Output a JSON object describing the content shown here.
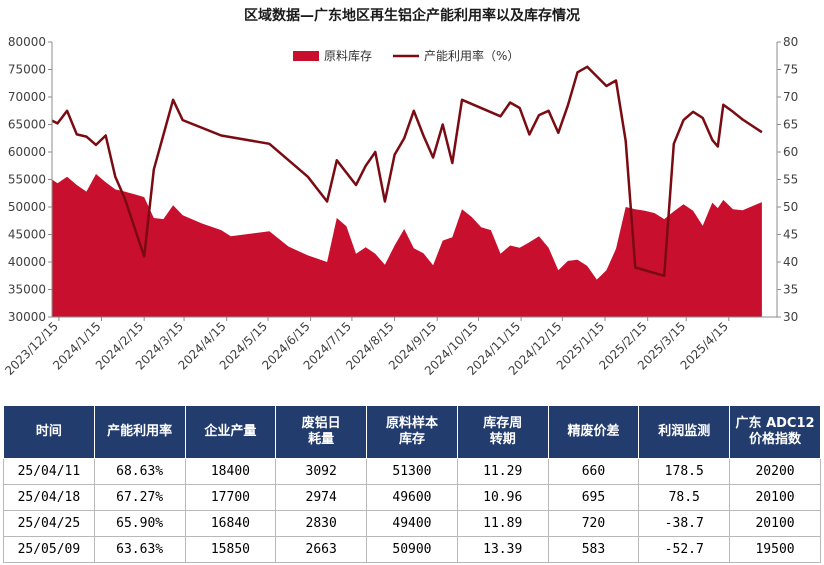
{
  "chart_data": {
    "type": "area+line",
    "title": "区域数据—广东地区再生铝企产能利用率以及库存情况",
    "colors": {
      "area": "#c8102e",
      "line": "#7a0b12"
    },
    "legend": {
      "position": "top-center",
      "items": [
        "原料库存",
        "产能利用率（%）"
      ]
    },
    "grid": false,
    "y_left": {
      "min": 30000,
      "max": 80000,
      "step": 5000,
      "ticks": [
        "30000",
        "35000",
        "40000",
        "45000",
        "50000",
        "55000",
        "60000",
        "65000",
        "70000",
        "75000",
        "80000"
      ]
    },
    "y_right": {
      "min": 30,
      "max": 80,
      "step": 5,
      "ticks": [
        "30",
        "35",
        "40",
        "45",
        "50",
        "55",
        "60",
        "65",
        "70",
        "75",
        "80"
      ]
    },
    "x_ticks": [
      "2023/12/15",
      "2024/1/15",
      "2024/2/15",
      "2024/3/15",
      "2024/4/15",
      "2024/5/15",
      "2024/6/15",
      "2024/7/15",
      "2024/8/15",
      "2024/9/15",
      "2024/10/15",
      "2024/11/15",
      "2024/12/15",
      "2025/1/15",
      "2025/2/15",
      "2025/3/15",
      "2025/4/15"
    ],
    "x_range": [
      "2023-12-10",
      "2025-05-20"
    ],
    "series": [
      {
        "name": "原料库存",
        "kind": "area",
        "axis": "left",
        "points": [
          [
            "2023-12-10",
            55000
          ],
          [
            "2023-12-14",
            54300
          ],
          [
            "2023-12-21",
            55500
          ],
          [
            "2023-12-28",
            54000
          ],
          [
            "2024-01-04",
            52800
          ],
          [
            "2024-01-11",
            56000
          ],
          [
            "2024-01-18",
            54500
          ],
          [
            "2024-01-25",
            53200
          ],
          [
            "2024-02-01",
            52800
          ],
          [
            "2024-02-08",
            52300
          ],
          [
            "2024-02-15",
            51800
          ],
          [
            "2024-02-22",
            48000
          ],
          [
            "2024-02-29",
            47800
          ],
          [
            "2024-03-07",
            50300
          ],
          [
            "2024-03-14",
            48500
          ],
          [
            "2024-03-28",
            47000
          ],
          [
            "2024-04-11",
            45800
          ],
          [
            "2024-04-18",
            44700
          ],
          [
            "2024-05-16",
            45600
          ],
          [
            "2024-05-30",
            42800
          ],
          [
            "2024-06-13",
            41200
          ],
          [
            "2024-06-27",
            40000
          ],
          [
            "2024-07-04",
            48000
          ],
          [
            "2024-07-11",
            46500
          ],
          [
            "2024-07-18",
            41500
          ],
          [
            "2024-07-25",
            42700
          ],
          [
            "2024-08-01",
            41500
          ],
          [
            "2024-08-08",
            39500
          ],
          [
            "2024-08-15",
            43000
          ],
          [
            "2024-08-22",
            46000
          ],
          [
            "2024-08-29",
            42500
          ],
          [
            "2024-09-05",
            41600
          ],
          [
            "2024-09-12",
            39400
          ],
          [
            "2024-09-19",
            43900
          ],
          [
            "2024-09-26",
            44500
          ],
          [
            "2024-10-03",
            49600
          ],
          [
            "2024-10-10",
            48200
          ],
          [
            "2024-10-17",
            46300
          ],
          [
            "2024-10-24",
            45800
          ],
          [
            "2024-10-31",
            41500
          ],
          [
            "2024-11-07",
            43000
          ],
          [
            "2024-11-14",
            42600
          ],
          [
            "2024-11-21",
            43600
          ],
          [
            "2024-11-28",
            44700
          ],
          [
            "2024-12-05",
            42600
          ],
          [
            "2024-12-12",
            38500
          ],
          [
            "2024-12-19",
            40200
          ],
          [
            "2024-12-26",
            40400
          ],
          [
            "2025-01-02",
            39300
          ],
          [
            "2025-01-09",
            36800
          ],
          [
            "2025-01-16",
            38500
          ],
          [
            "2025-01-23",
            42400
          ],
          [
            "2025-01-30",
            50000
          ],
          [
            "2025-02-06",
            49600
          ],
          [
            "2025-02-13",
            49300
          ],
          [
            "2025-02-20",
            48900
          ],
          [
            "2025-02-27",
            47800
          ],
          [
            "2025-03-06",
            49200
          ],
          [
            "2025-03-13",
            50500
          ],
          [
            "2025-03-20",
            49300
          ],
          [
            "2025-03-27",
            46600
          ],
          [
            "2025-04-03",
            50800
          ],
          [
            "2025-04-07",
            49800
          ],
          [
            "2025-04-11",
            51300
          ],
          [
            "2025-04-18",
            49600
          ],
          [
            "2025-04-25",
            49400
          ],
          [
            "2025-05-09",
            50900
          ]
        ]
      },
      {
        "name": "产能利用率（%）",
        "kind": "line",
        "axis": "right",
        "points": [
          [
            "2023-12-10",
            65.7
          ],
          [
            "2023-12-14",
            65.2
          ],
          [
            "2023-12-21",
            67.5
          ],
          [
            "2023-12-28",
            63.2
          ],
          [
            "2024-01-04",
            62.8
          ],
          [
            "2024-01-11",
            61.3
          ],
          [
            "2024-01-18",
            63.0
          ],
          [
            "2024-01-25",
            55.5
          ],
          [
            "2024-02-01",
            51.5
          ],
          [
            "2024-02-15",
            41.0
          ],
          [
            "2024-02-22",
            56.8
          ],
          [
            "2024-03-07",
            69.5
          ],
          [
            "2024-03-14",
            65.8
          ],
          [
            "2024-04-11",
            63.0
          ],
          [
            "2024-05-16",
            61.5
          ],
          [
            "2024-06-13",
            55.5
          ],
          [
            "2024-06-27",
            51.0
          ],
          [
            "2024-07-04",
            58.5
          ],
          [
            "2024-07-18",
            54.0
          ],
          [
            "2024-07-25",
            57.5
          ],
          [
            "2024-08-01",
            60.0
          ],
          [
            "2024-08-08",
            51.0
          ],
          [
            "2024-08-15",
            59.5
          ],
          [
            "2024-08-22",
            62.5
          ],
          [
            "2024-08-29",
            67.5
          ],
          [
            "2024-09-05",
            63.0
          ],
          [
            "2024-09-12",
            59.0
          ],
          [
            "2024-09-19",
            65.0
          ],
          [
            "2024-09-26",
            58.0
          ],
          [
            "2024-10-03",
            69.5
          ],
          [
            "2024-10-31",
            66.5
          ],
          [
            "2024-11-07",
            69.0
          ],
          [
            "2024-11-14",
            68.0
          ],
          [
            "2024-11-21",
            63.2
          ],
          [
            "2024-11-28",
            66.7
          ],
          [
            "2024-12-05",
            67.5
          ],
          [
            "2024-12-12",
            63.5
          ],
          [
            "2024-12-19",
            68.5
          ],
          [
            "2024-12-26",
            74.5
          ],
          [
            "2025-01-02",
            75.5
          ],
          [
            "2025-01-16",
            72.0
          ],
          [
            "2025-01-23",
            73.0
          ],
          [
            "2025-01-30",
            62.0
          ],
          [
            "2025-02-06",
            39.0
          ],
          [
            "2025-02-27",
            37.5
          ],
          [
            "2025-03-06",
            61.5
          ],
          [
            "2025-03-13",
            65.8
          ],
          [
            "2025-03-20",
            67.3
          ],
          [
            "2025-03-27",
            66.2
          ],
          [
            "2025-04-03",
            62.2
          ],
          [
            "2025-04-07",
            61.0
          ],
          [
            "2025-04-11",
            68.6
          ],
          [
            "2025-04-18",
            67.3
          ],
          [
            "2025-04-25",
            65.9
          ],
          [
            "2025-05-09",
            63.6
          ]
        ]
      }
    ]
  },
  "table": {
    "headers": [
      [
        "时间"
      ],
      [
        "产能利用率"
      ],
      [
        "企业产量"
      ],
      [
        "废铝日",
        "耗量"
      ],
      [
        "原料样本",
        "库存"
      ],
      [
        "库存周",
        "转期"
      ],
      [
        "精废价差"
      ],
      [
        "利润监测"
      ],
      [
        "广东 ADC12",
        "价格指数"
      ]
    ],
    "rows": [
      [
        "25/04/11",
        "68.63%",
        "18400",
        "3092",
        "51300",
        "11.29",
        "660",
        "178.5",
        "20200"
      ],
      [
        "25/04/18",
        "67.27%",
        "17700",
        "2974",
        "49600",
        "10.96",
        "695",
        "78.5",
        "20100"
      ],
      [
        "25/04/25",
        "65.90%",
        "16840",
        "2830",
        "49400",
        "11.89",
        "720",
        "-38.7",
        "20100"
      ],
      [
        "25/05/09",
        "63.63%",
        "15850",
        "2663",
        "50900",
        "13.39",
        "583",
        "-52.7",
        "19500"
      ]
    ]
  }
}
